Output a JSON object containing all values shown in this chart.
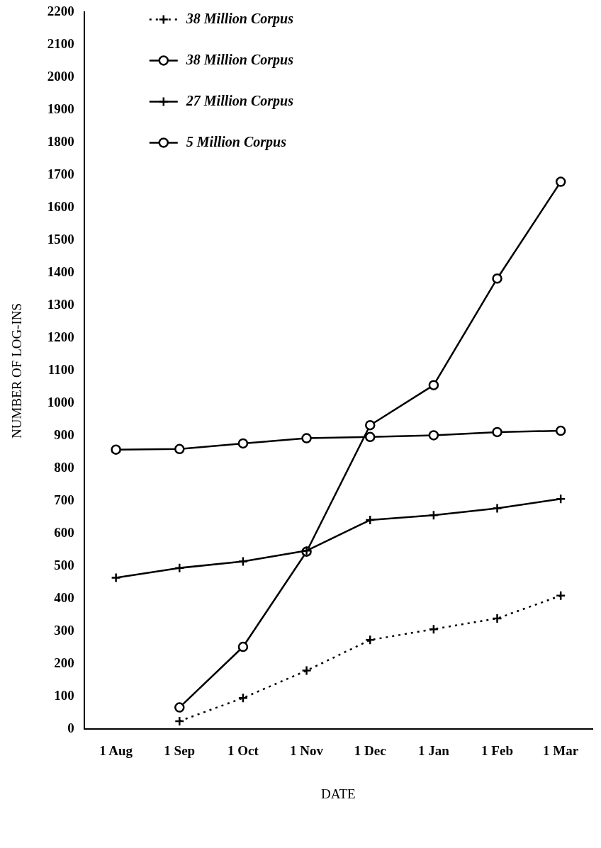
{
  "chart_data": {
    "type": "line",
    "xlabel": "DATE",
    "ylabel": "NUMBER OF LOG-INS",
    "categories": [
      "1 Aug",
      "1 Sep",
      "1 Oct",
      "1 Nov",
      "1 Dec",
      "1 Jan",
      "1 Feb",
      "1 Mar"
    ],
    "series": [
      {
        "name": "38 Million Corpus",
        "color": "#000000",
        "marker": "cross",
        "line_style": "dotted",
        "values": [
          null,
          25,
          96,
          180,
          274,
          307,
          340,
          410
        ]
      },
      {
        "name": "38 Million Corpus",
        "color": "#000000",
        "marker": "circle",
        "line_style": "solid",
        "values": [
          null,
          67,
          253,
          545,
          933,
          1056,
          1383,
          1680
        ]
      },
      {
        "name": "27 Million Corpus",
        "color": "#000000",
        "marker": "cross",
        "line_style": "solid",
        "values": [
          465,
          495,
          515,
          548,
          642,
          657,
          678,
          707
        ]
      },
      {
        "name": "5 Million Corpus",
        "color": "#000000",
        "marker": "circle",
        "line_style": "solid",
        "values": [
          858,
          860,
          877,
          893,
          897,
          902,
          912,
          916
        ]
      }
    ],
    "ylim": [
      0,
      2200
    ],
    "yticks": [
      0,
      100,
      200,
      300,
      400,
      500,
      600,
      700,
      800,
      900,
      1000,
      1100,
      1200,
      1300,
      1400,
      1500,
      1600,
      1700,
      1800,
      1900,
      2000,
      2100,
      2200
    ],
    "grid": false,
    "legend": "top left"
  }
}
